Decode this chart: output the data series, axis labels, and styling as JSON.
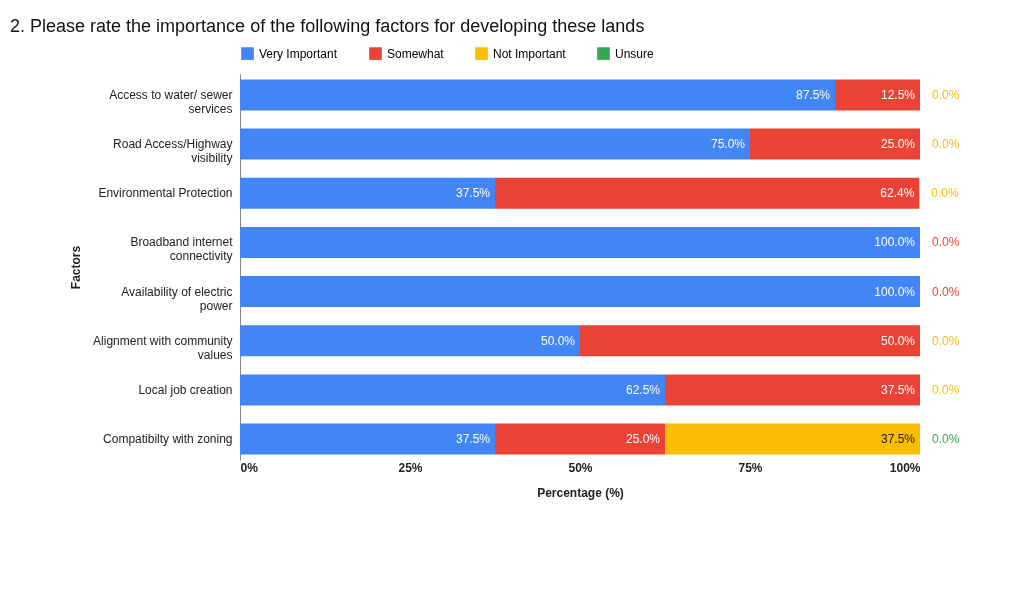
{
  "chart_data": {
    "type": "bar",
    "orientation": "horizontal",
    "stacked": true,
    "title": "2. Please rate the importance of the following factors for developing these lands",
    "xlabel": "Percentage (%)",
    "ylabel": "Factors",
    "legend": "top",
    "categories": [
      "Access to water/ sewer services",
      "Road Access/Highway visibility",
      "Environmental Protection",
      "Broadband internet connectivity",
      "Availability of electric power",
      "Alignment with community values",
      "Local job creation",
      "Compatibilty with zoning"
    ],
    "xlim": [
      0,
      100
    ],
    "xticks": [
      {
        "value": 0,
        "label": "0%"
      },
      {
        "value": 25,
        "label": "25%"
      },
      {
        "value": 50,
        "label": "50%"
      },
      {
        "value": 75,
        "label": "75%"
      },
      {
        "value": 100,
        "label": "100%"
      }
    ],
    "series": [
      {
        "name": "Very Important",
        "color": "#4285f4",
        "values": [
          87.5,
          75,
          37.5,
          100,
          100,
          50,
          62.5,
          37.5
        ],
        "value_labels": [
          "87.5%",
          "75.0%",
          "37.5%",
          "100.0%",
          "100.0%",
          "50.0%",
          "62.5%",
          "37.5%"
        ]
      },
      {
        "name": "Somewhat",
        "color": "#ea4335",
        "values": [
          12.5,
          25,
          62.4,
          0,
          0,
          50,
          37.5,
          25
        ],
        "value_labels": [
          "12.5%",
          "25.0%",
          "62.4%",
          "0.0%",
          "0.0%",
          "50.0%",
          "37.5%",
          "25.0%"
        ]
      },
      {
        "name": "Not Important",
        "color": "#fbbc04",
        "values": [
          0,
          0,
          0,
          0,
          0,
          0,
          0,
          37.5
        ],
        "value_labels": [
          "0.0%",
          "0.0%",
          "0.0%",
          null,
          null,
          "0.0%",
          "0.0%",
          "37.5%"
        ]
      },
      {
        "name": "Unsure",
        "color": "#34a853",
        "values": [
          0,
          0,
          0,
          0,
          0,
          0,
          0,
          0
        ],
        "value_labels": [
          null,
          null,
          null,
          null,
          null,
          null,
          null,
          "0.0%"
        ]
      }
    ]
  }
}
